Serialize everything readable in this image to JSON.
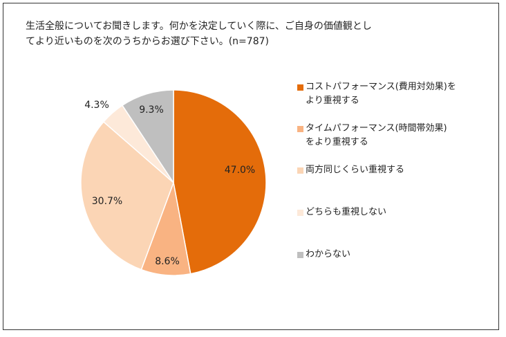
{
  "chart_data": {
    "type": "pie",
    "title": "生活全般についてお聞きします。何かを決定していく際に、ご自身の価値観としてより近いものを次のうちからお選び下さい。(n=787)",
    "title_lines": [
      "生活全般についてお聞きします。何かを決定していく際に、ご自身の価値観とし",
      "てより近いものを次のうちからお選び下さい。(n=787)"
    ],
    "start_angle": "12 o'clock",
    "direction": "clockwise",
    "legend_position": "right",
    "slices": [
      {
        "label": "コストパフォーマンス(費用対効果)をより重視する",
        "legend_lines": [
          "コストパフォーマンス(費用対効果)を",
          "より重視する"
        ],
        "value": 47.0,
        "value_label": "47.0%",
        "color": "#E46C0A"
      },
      {
        "label": "タイムパフォーマンス(時間帯効果)をより重視する",
        "legend_lines": [
          "タイムパフォーマンス(時間帯効果)",
          "をより重視する"
        ],
        "value": 8.6,
        "value_label": "8.6%",
        "color": "#F9B382"
      },
      {
        "label": "両方同じくらい重視する",
        "legend_lines": [
          "両方同じくらい重視する"
        ],
        "value": 30.7,
        "value_label": "30.7%",
        "color": "#FBD5B5"
      },
      {
        "label": "どちらも重視しない",
        "legend_lines": [
          "どちらも重視しない"
        ],
        "value": 4.3,
        "value_label": "4.3%",
        "color": "#FDE9D9"
      },
      {
        "label": "わからない",
        "legend_lines": [
          "わからない"
        ],
        "value": 9.3,
        "value_label": "9.3%",
        "color": "#BFBFBF"
      }
    ]
  }
}
